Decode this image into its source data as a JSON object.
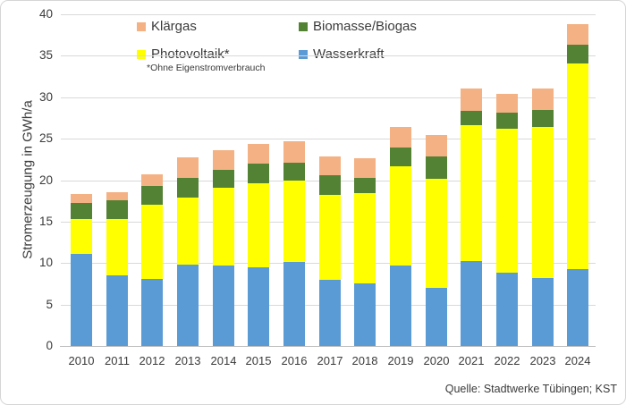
{
  "chart": {
    "ylabel": "Stromerzeugung in GWh/a",
    "source": "Quelle: Stadtwerke Tübingen; KST",
    "legend": {
      "items": [
        {
          "label": "Klärgas",
          "color": "#F4B183"
        },
        {
          "label": "Biomasse/Biogas",
          "color": "#548235"
        },
        {
          "label": "Photovoltaik*",
          "color": "#FFFF00",
          "footnote": "*Ohne Eigenstromverbrauch"
        },
        {
          "label": "Wasserkraft",
          "color": "#5B9BD5"
        }
      ]
    },
    "colors": {
      "gridline": "#D9D9D9",
      "axisline": "#BFBFBF",
      "text": "#3B3B3B"
    }
  },
  "chart_data": {
    "type": "bar",
    "stacked": true,
    "title": "",
    "xlabel": "",
    "ylabel": "Stromerzeugung in GWh/a",
    "ylim": [
      0,
      40
    ],
    "ytick_step": 5,
    "grid": true,
    "legend_position": "top",
    "categories": [
      "2010",
      "2011",
      "2012",
      "2013",
      "2014",
      "2015",
      "2016",
      "2017",
      "2018",
      "2019",
      "2020",
      "2021",
      "2022",
      "2023",
      "2024"
    ],
    "series": [
      {
        "name": "Wasserkraft",
        "color": "#5B9BD5",
        "values": [
          11.1,
          8.5,
          8.1,
          9.8,
          9.7,
          9.5,
          10.1,
          8.0,
          7.5,
          9.7,
          7.0,
          10.2,
          8.8,
          8.2,
          9.3
        ]
      },
      {
        "name": "Photovoltaik*",
        "color": "#FFFF00",
        "values": [
          4.2,
          6.8,
          8.9,
          8.1,
          9.4,
          10.1,
          9.8,
          10.2,
          10.9,
          12.0,
          13.2,
          16.4,
          17.4,
          18.2,
          24.8
        ]
      },
      {
        "name": "Biomasse/Biogas",
        "color": "#548235",
        "values": [
          2.0,
          2.3,
          2.3,
          2.4,
          2.1,
          2.4,
          2.2,
          2.4,
          1.9,
          2.2,
          2.7,
          1.8,
          1.9,
          2.1,
          2.2
        ]
      },
      {
        "name": "Klärgas",
        "color": "#F4B183",
        "values": [
          1.0,
          0.9,
          1.4,
          2.5,
          2.4,
          2.4,
          2.6,
          2.3,
          2.3,
          2.5,
          2.5,
          2.7,
          2.3,
          2.6,
          2.5
        ]
      }
    ],
    "totals": [
      18.3,
      18.5,
      20.7,
      22.8,
      23.6,
      24.4,
      24.7,
      22.9,
      22.6,
      26.4,
      25.4,
      31.1,
      30.4,
      31.1,
      38.8
    ]
  }
}
